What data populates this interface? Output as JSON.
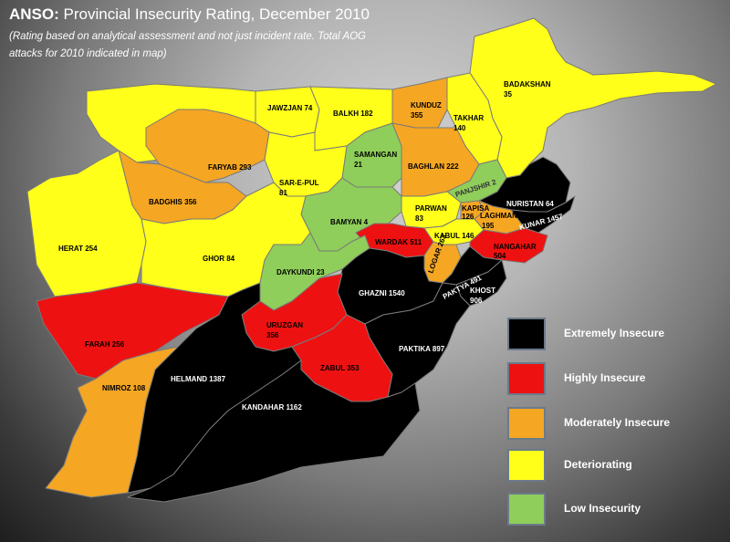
{
  "header": {
    "brand": "ANSO:",
    "title": " Provincial Insecurity Rating, December 2010",
    "subtitle": "(Rating based on analytical assessment and not just incident rate. Total AOG attacks for 2010 indicated in map)"
  },
  "colors": {
    "extreme": "#000000",
    "high": "#ee1111",
    "moderate": "#f5a623",
    "deteriorating": "#ffff1a",
    "low": "#8fce5a"
  },
  "legend": [
    {
      "label": "Extremely Insecure",
      "color": "#000000"
    },
    {
      "label": "Highly Insecure",
      "color": "#ee1111"
    },
    {
      "label": "Moderately Insecure",
      "color": "#f5a623"
    },
    {
      "label": "Deteriorating",
      "color": "#ffff1a"
    },
    {
      "label": "Low Insecurity",
      "color": "#8fce5a"
    }
  ],
  "provinces": [
    {
      "name": "BADAKSHAN",
      "attacks": "35",
      "rating": "deteriorating"
    },
    {
      "name": "KUNDUZ",
      "attacks": "355",
      "rating": "moderate"
    },
    {
      "name": "TAKHAR",
      "attacks": "140",
      "rating": "deteriorating"
    },
    {
      "name": "JAWZJAN",
      "attacks": "74",
      "rating": "deteriorating"
    },
    {
      "name": "BALKH",
      "attacks": "182",
      "rating": "deteriorating"
    },
    {
      "name": "SAMANGAN",
      "attacks": "21",
      "rating": "low"
    },
    {
      "name": "BAGHLAN",
      "attacks": "222",
      "rating": "moderate"
    },
    {
      "name": "FARYAB",
      "attacks": "293",
      "rating": "moderate"
    },
    {
      "name": "SAR-E-PUL",
      "attacks": "81",
      "rating": "deteriorating"
    },
    {
      "name": "BADGHIS",
      "attacks": "356",
      "rating": "moderate"
    },
    {
      "name": "PANJSHIR",
      "attacks": "2",
      "rating": "low"
    },
    {
      "name": "NURISTAN",
      "attacks": "64",
      "rating": "extreme"
    },
    {
      "name": "KUNAR",
      "attacks": "1457",
      "rating": "extreme"
    },
    {
      "name": "PARWAN",
      "attacks": "83",
      "rating": "deteriorating"
    },
    {
      "name": "KAPISA",
      "attacks": "126",
      "rating": "moderate"
    },
    {
      "name": "LAGHMAN",
      "attacks": "195",
      "rating": "moderate"
    },
    {
      "name": "BAMYAN",
      "attacks": "4",
      "rating": "low"
    },
    {
      "name": "HERAT",
      "attacks": "254",
      "rating": "deteriorating"
    },
    {
      "name": "WARDAK",
      "attacks": "511",
      "rating": "high"
    },
    {
      "name": "KABUL",
      "attacks": "146",
      "rating": "deteriorating"
    },
    {
      "name": "NANGAHAR",
      "attacks": "504",
      "rating": "high"
    },
    {
      "name": "GHOR",
      "attacks": "84",
      "rating": "deteriorating"
    },
    {
      "name": "DAYKUNDI",
      "attacks": "23",
      "rating": "low"
    },
    {
      "name": "LOGAR",
      "attacks": "263",
      "rating": "moderate"
    },
    {
      "name": "PAKTYA",
      "attacks": "491",
      "rating": "extreme"
    },
    {
      "name": "GHAZNI",
      "attacks": "1540",
      "rating": "extreme"
    },
    {
      "name": "KHOST",
      "attacks": "906",
      "rating": "extreme"
    },
    {
      "name": "URUZGAN",
      "attacks": "356",
      "rating": "high"
    },
    {
      "name": "FARAH",
      "attacks": "256",
      "rating": "high"
    },
    {
      "name": "PAKTIKA",
      "attacks": "897",
      "rating": "extreme"
    },
    {
      "name": "HELMAND",
      "attacks": "1387",
      "rating": "extreme"
    },
    {
      "name": "ZABUL",
      "attacks": "353",
      "rating": "high"
    },
    {
      "name": "NIMROZ",
      "attacks": "108",
      "rating": "moderate"
    },
    {
      "name": "KANDAHAR",
      "attacks": "1162",
      "rating": "extreme"
    }
  ]
}
